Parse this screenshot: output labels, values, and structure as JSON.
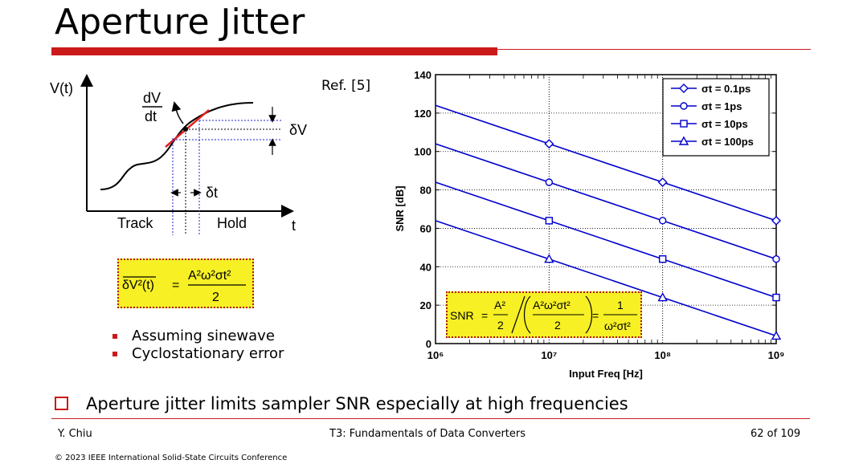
{
  "slide": {
    "title": "Aperture Jitter",
    "reference": "Ref. [5]",
    "bullets": [
      "Assuming sinewave",
      "Cyclostationary error"
    ],
    "main_point": "Aperture jitter limits sampler SNR especially at high frequencies"
  },
  "diagram": {
    "y_axis_label": "V(t)",
    "x_axis_label": "t",
    "slope_numerator": "dV",
    "slope_denominator": "dt",
    "delta_v": "δV",
    "delta_t": "δt",
    "track": "Track",
    "hold": "Hold"
  },
  "formula_1": {
    "lhs": "δV²(t)",
    "numerator": "A²ω²σt²",
    "denominator": "2"
  },
  "formula_2": {
    "lhs": "SNR",
    "term1_num": "A²",
    "term1_den": "2",
    "term2_num": "A²ω²σt²",
    "term2_den": "2",
    "result_num": "1",
    "result_den": "ω²σt²"
  },
  "chart_data": {
    "type": "line",
    "x_scale": "log",
    "x": [
      1000000,
      10000000,
      100000000,
      1000000000
    ],
    "x_tick_labels": [
      "10⁶",
      "10⁷",
      "10⁸",
      "10⁹"
    ],
    "xlabel": "Input Freq [Hz]",
    "ylabel": "SNR [dB]",
    "xlim": [
      1000000,
      1000000000
    ],
    "ylim": [
      0,
      140
    ],
    "y_ticks": [
      0,
      20,
      40,
      60,
      80,
      100,
      120,
      140
    ],
    "grid": true,
    "legend_position": "top-right",
    "series": [
      {
        "name": "σt = 0.1ps",
        "marker": "diamond",
        "values": [
          124,
          104,
          84,
          64
        ]
      },
      {
        "name": "σt = 1ps",
        "marker": "circle",
        "values": [
          104,
          84,
          64,
          44
        ]
      },
      {
        "name": "σt = 10ps",
        "marker": "square",
        "values": [
          84,
          64,
          44,
          24
        ]
      },
      {
        "name": "σt = 100ps",
        "marker": "triangle",
        "values": [
          64,
          44,
          24,
          4
        ]
      }
    ],
    "line_color": "#0000cc"
  },
  "footer": {
    "author": "Y. Chiu",
    "course": "T3: Fundamentals of Data Converters",
    "page": "62 of 109",
    "copyright": "© 2023 IEEE International Solid-State Circuits Conference"
  },
  "colors": {
    "accent": "#cc1a1a",
    "formula_bg": "#f6f025",
    "plot_blue": "#0000cc"
  }
}
